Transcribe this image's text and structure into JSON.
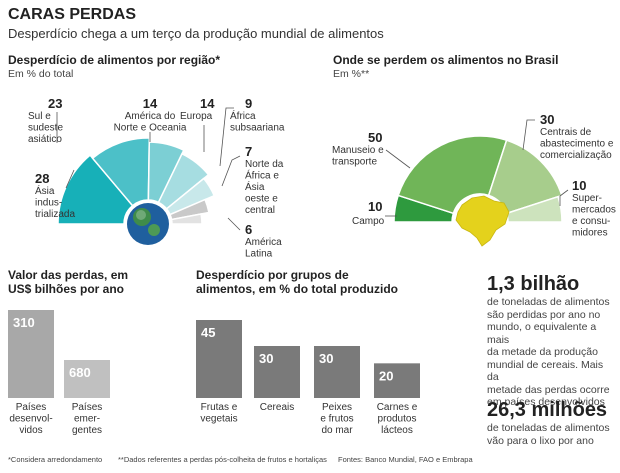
{
  "header": {
    "title": "CARAS PERDAS",
    "subtitle": "Desperdício chega a um terço da produção mundial de alimentos"
  },
  "chart_data": [
    {
      "type": "pie",
      "title": "Desperdício de alimentos por região*",
      "unit": "Em % do total",
      "categories": [
        "Ásia industrializada",
        "Sul e sudeste asiático",
        "América do Norte e Oceania",
        "Europa",
        "África subsaariana",
        "Norte da África e Ásia oeste e central",
        "América Latina"
      ],
      "values": [
        28,
        23,
        14,
        14,
        9,
        7,
        6
      ],
      "value_labels": [
        "28",
        "23",
        "14",
        "14",
        "9",
        "7",
        "6"
      ],
      "label_lines": [
        [
          "Ásia",
          "indus-",
          "trializada"
        ],
        [
          "Sul e",
          "sudeste",
          "asiático"
        ],
        [
          "América do",
          "Norte e Oceania"
        ],
        [
          "Europa"
        ],
        [
          "África",
          "subsaariana"
        ],
        [
          "Norte da",
          "África e",
          "Ásia",
          "oeste e",
          "central"
        ],
        [
          "América",
          "Latina"
        ]
      ],
      "colors": [
        "#17b0b8",
        "#4cc0c8",
        "#7ccfd4",
        "#a6dde1",
        "#c8e8ea",
        "#c9c9c9",
        "#e2e2e2"
      ]
    },
    {
      "type": "pie",
      "title": "Onde se perdem os alimentos no Brasil",
      "unit": "Em %**",
      "categories": [
        "Campo",
        "Manuseio e transporte",
        "Centrais de abastecimento e comercialização",
        "Supermercados e consumidores"
      ],
      "values": [
        10,
        50,
        30,
        10
      ],
      "value_labels": [
        "10",
        "50",
        "30",
        "10"
      ],
      "label_lines": [
        [
          "Campo"
        ],
        [
          "Manuseio e",
          "transporte"
        ],
        [
          "Centrais de",
          "abastecimento e",
          "comercialização"
        ],
        [
          "Super-",
          "mercados",
          "e consu-",
          "midores"
        ]
      ],
      "colors": [
        "#2e9a3e",
        "#70b558",
        "#a7cd8c",
        "#cde3bd"
      ]
    },
    {
      "type": "bar",
      "title": "Valor das perdas, em US$ bilhões por ano",
      "title_lines": [
        "Valor das perdas, em",
        "US$ bilhões por ano"
      ],
      "categories": [
        "Países desenvolvidos",
        "Países emergentes"
      ],
      "values": [
        310,
        680
      ],
      "value_labels": [
        "310",
        "680"
      ],
      "label_lines": [
        [
          "Países",
          "desenvol-",
          "vidos"
        ],
        [
          "Países",
          "emer-",
          "gentes"
        ]
      ],
      "colors": [
        "#a8a8a8",
        "#c0c0c0"
      ]
    },
    {
      "type": "bar",
      "title": "Desperdício por grupos de alimentos, em % do total produzido",
      "title_lines": [
        "Desperdício por grupos de",
        "alimentos, em % do total produzido"
      ],
      "categories": [
        "Frutas e vegetais",
        "Cereais",
        "Peixes e frutos do mar",
        "Carnes e produtos lácteos"
      ],
      "values": [
        45,
        30,
        30,
        20
      ],
      "value_labels": [
        "45",
        "30",
        "30",
        "20"
      ],
      "label_lines": [
        [
          "Frutas e",
          "vegetais"
        ],
        [
          "Cereais"
        ],
        [
          "Peixes",
          "e frutos",
          "do mar"
        ],
        [
          "Carnes e",
          "produtos",
          "lácteos"
        ]
      ],
      "colors": [
        "#7a7a7a",
        "#7a7a7a",
        "#7a7a7a",
        "#7a7a7a"
      ]
    }
  ],
  "facts": [
    {
      "big": "1,3 bilhão",
      "lines": [
        "de toneladas de alimentos",
        "são perdidas por ano no",
        "mundo, o equivalente a mais",
        "da metade da produção",
        "mundial de cereais. Mais da",
        "metade das perdas ocorre",
        "em países desenvolvidos"
      ]
    },
    {
      "big": "26,3 milhões",
      "lines": [
        "de toneladas de alimentos",
        "vão para o lixo por ano"
      ]
    }
  ],
  "footer": {
    "note1": "*Considera arredondamento",
    "note2": "**Dados referentes a perdas pós-colheita de frutos e hortaliças",
    "source": "Fontes: Banco Mundial, FAO e Embrapa"
  }
}
